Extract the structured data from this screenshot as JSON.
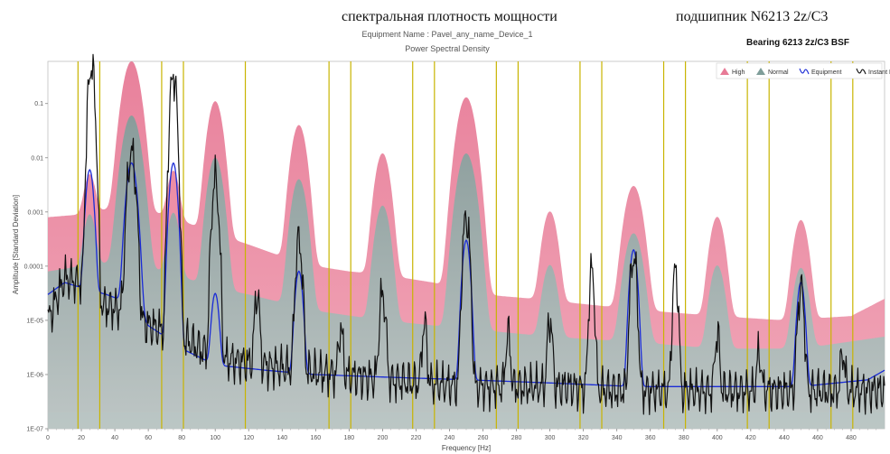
{
  "header": {
    "title_ru": "спектральная плотность мощности",
    "title_bearing": "подшипник N6213 2z/C3",
    "equipment_name": "Equipment Name : Pavel_any_name_Device_1",
    "subtitle": "Power Spectral Density",
    "bsf_label": "Bearing 6213 2z/C3 BSF"
  },
  "colors": {
    "high": "#f0a3b5",
    "high_peak": "#e77a96",
    "normal": "#b8c9c6",
    "normal_peak": "#7f9e9a",
    "equipment": "#1a2bd6",
    "instant": "#111111",
    "marker": "#c8b400"
  },
  "chart_data": {
    "type": "line",
    "title": "Power Spectral Density",
    "xlabel": "Frequency [Hz]",
    "ylabel": "Amplitude [Standard Deviation]",
    "xlim": [
      0,
      500
    ],
    "ylim": [
      1e-07,
      0.6
    ],
    "yscale": "log",
    "x_ticks": [
      0,
      20,
      40,
      60,
      80,
      100,
      120,
      140,
      160,
      180,
      200,
      220,
      240,
      260,
      280,
      300,
      320,
      340,
      360,
      380,
      400,
      420,
      440,
      460,
      480
    ],
    "y_ticks": [
      {
        "value": 0.1,
        "label": "0.1"
      },
      {
        "value": 0.01,
        "label": "0.01"
      },
      {
        "value": 0.001,
        "label": "0.001"
      },
      {
        "value": 0.0001,
        "label": "0.0001"
      },
      {
        "value": 1e-05,
        "label": "1E-05"
      },
      {
        "value": 1e-06,
        "label": "1E-06"
      },
      {
        "value": 1e-07,
        "label": "1E-07"
      }
    ],
    "legend": {
      "position": "top-right",
      "entries": [
        {
          "key": "high",
          "label": "High"
        },
        {
          "key": "normal",
          "label": "Normal"
        },
        {
          "key": "equipment",
          "label": "Equipment"
        },
        {
          "key": "instant",
          "label": "Instant PSD"
        }
      ]
    },
    "bsf_markers": [
      18,
      31,
      68,
      81,
      118,
      168,
      181,
      218,
      231,
      268,
      281,
      318,
      331,
      368,
      381,
      418,
      431,
      468,
      481
    ],
    "series": [
      {
        "key": "high",
        "name": "High",
        "style": "area",
        "baseline": [
          [
            0,
            0.0008
          ],
          [
            20,
            0.0009
          ],
          [
            40,
            0.0012
          ],
          [
            70,
            0.0009
          ],
          [
            100,
            0.0004
          ],
          [
            120,
            0.00025
          ],
          [
            140,
            0.00015
          ],
          [
            160,
            0.0001
          ],
          [
            180,
            8e-05
          ],
          [
            200,
            7e-05
          ],
          [
            230,
            5e-05
          ],
          [
            260,
            3e-05
          ],
          [
            290,
            2.5e-05
          ],
          [
            320,
            2e-05
          ],
          [
            360,
            1.5e-05
          ],
          [
            400,
            1.2e-05
          ],
          [
            440,
            1e-05
          ],
          [
            480,
            1.2e-05
          ],
          [
            500,
            2.5e-05
          ]
        ],
        "peaks": [
          [
            25,
            0.004,
            2.5
          ],
          [
            50,
            0.6,
            3.5
          ],
          [
            75,
            0.005,
            2.5
          ],
          [
            100,
            0.11,
            3
          ],
          [
            150,
            0.04,
            3
          ],
          [
            200,
            0.012,
            3
          ],
          [
            250,
            0.13,
            3.5
          ],
          [
            300,
            0.001,
            3
          ],
          [
            350,
            0.003,
            3.5
          ],
          [
            400,
            0.0008,
            3
          ],
          [
            450,
            0.0007,
            3
          ]
        ]
      },
      {
        "key": "normal",
        "name": "Normal",
        "style": "area",
        "baseline": [
          [
            0,
            8e-05
          ],
          [
            20,
            0.0001
          ],
          [
            40,
            0.00012
          ],
          [
            70,
            8e-05
          ],
          [
            100,
            4e-05
          ],
          [
            120,
            3e-05
          ],
          [
            160,
            1.5e-05
          ],
          [
            200,
            1e-05
          ],
          [
            250,
            7e-06
          ],
          [
            300,
            5e-06
          ],
          [
            350,
            4e-06
          ],
          [
            400,
            3e-06
          ],
          [
            450,
            3e-06
          ],
          [
            500,
            5e-06
          ]
        ],
        "peaks": [
          [
            25,
            0.0008,
            2.5
          ],
          [
            50,
            0.06,
            3.5
          ],
          [
            75,
            0.0009,
            2.5
          ],
          [
            100,
            0.01,
            3
          ],
          [
            150,
            0.004,
            3
          ],
          [
            200,
            0.0013,
            3
          ],
          [
            250,
            0.012,
            3.5
          ],
          [
            300,
            0.0001,
            3
          ],
          [
            350,
            0.0004,
            3.5
          ],
          [
            400,
            0.0001,
            3
          ],
          [
            450,
            9e-05,
            3
          ]
        ]
      },
      {
        "key": "equipment",
        "name": "Equipment",
        "style": "line",
        "baseline": [
          [
            0,
            3e-05
          ],
          [
            10,
            5e-05
          ],
          [
            20,
            4e-05
          ],
          [
            35,
            3e-05
          ],
          [
            50,
            2e-05
          ],
          [
            60,
            8e-06
          ],
          [
            70,
            5e-06
          ],
          [
            80,
            3e-06
          ],
          [
            100,
            1.5e-06
          ],
          [
            130,
            1.2e-06
          ],
          [
            160,
            1e-06
          ],
          [
            200,
            9e-07
          ],
          [
            250,
            8e-07
          ],
          [
            300,
            7e-07
          ],
          [
            350,
            6e-07
          ],
          [
            400,
            6e-07
          ],
          [
            450,
            6e-07
          ],
          [
            490,
            8e-07
          ],
          [
            500,
            1.2e-06
          ]
        ],
        "peaks": [
          [
            25,
            0.006,
            1.5
          ],
          [
            50,
            0.008,
            2
          ],
          [
            75,
            0.008,
            1.5
          ],
          [
            100,
            3e-05,
            1.5
          ],
          [
            150,
            8e-05,
            1.5
          ],
          [
            250,
            0.0003,
            1.5
          ],
          [
            350,
            0.0002,
            1.5
          ],
          [
            450,
            5e-05,
            1.5
          ]
        ]
      },
      {
        "key": "instant",
        "name": "Instant PSD",
        "style": "line",
        "baseline": [
          [
            0,
            1e-05
          ],
          [
            10,
            6e-05
          ],
          [
            20,
            5e-05
          ],
          [
            30,
            2e-05
          ],
          [
            45,
            1.5e-05
          ],
          [
            60,
            8e-06
          ],
          [
            80,
            5e-06
          ],
          [
            100,
            2e-06
          ],
          [
            150,
            1.2e-06
          ],
          [
            200,
            8e-07
          ],
          [
            250,
            6e-07
          ],
          [
            300,
            6e-07
          ],
          [
            350,
            5e-07
          ],
          [
            400,
            5e-07
          ],
          [
            450,
            5e-07
          ],
          [
            500,
            5e-07
          ]
        ],
        "peaks": [
          [
            26,
            0.5,
            1.2
          ],
          [
            50,
            0.012,
            1.5
          ],
          [
            75,
            0.35,
            1.2
          ],
          [
            100,
            0.004,
            1.2
          ],
          [
            125,
            3e-05,
            1.0
          ],
          [
            150,
            0.0003,
            1.2
          ],
          [
            175,
            6e-06,
            1.0
          ],
          [
            200,
            3e-05,
            1.2
          ],
          [
            225,
            8e-06,
            1.0
          ],
          [
            250,
            0.0008,
            1.2
          ],
          [
            275,
            5e-06,
            1.0
          ],
          [
            300,
            1e-05,
            1.0
          ],
          [
            325,
            8e-05,
            1.0
          ],
          [
            350,
            0.00015,
            1.2
          ],
          [
            375,
            8e-05,
            1.0
          ],
          [
            400,
            5e-06,
            1.0
          ],
          [
            425,
            2e-06,
            1.0
          ],
          [
            450,
            4e-05,
            1.2
          ],
          [
            475,
            2e-06,
            1.0
          ]
        ],
        "noise": 0.45
      }
    ]
  }
}
